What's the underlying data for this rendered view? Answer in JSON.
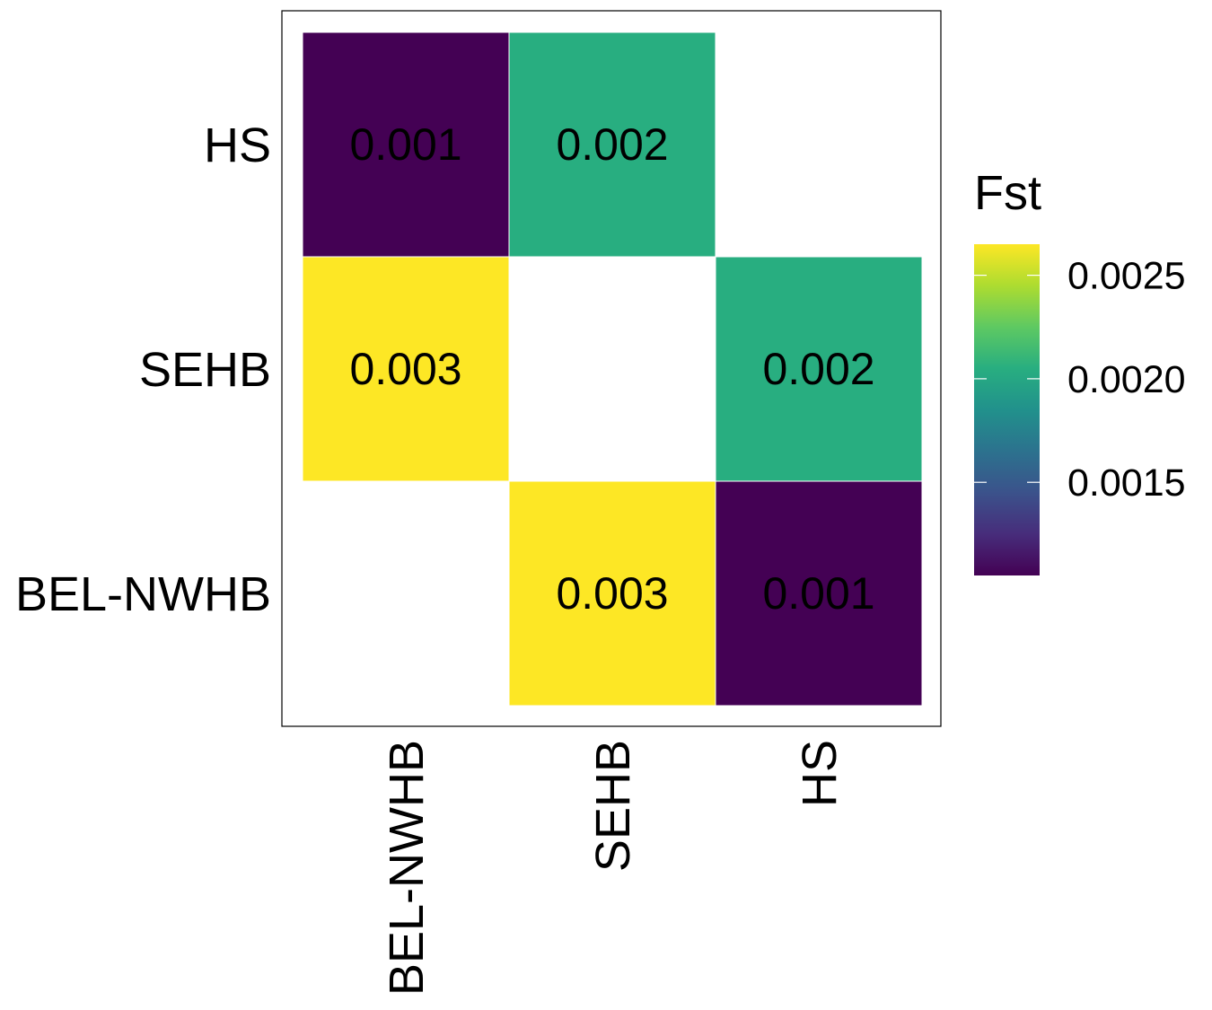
{
  "chart_data": {
    "type": "heatmap",
    "title": "",
    "xlabel": "",
    "ylabel": "",
    "x_categories": [
      "BEL-NWHB",
      "SEHB",
      "HS"
    ],
    "y_categories": [
      "BEL-NWHB",
      "SEHB",
      "HS"
    ],
    "cells": [
      {
        "x": "BEL-NWHB",
        "y": "HS",
        "value": 0.00105,
        "label": "0.001"
      },
      {
        "x": "SEHB",
        "y": "HS",
        "value": 0.00205,
        "label": "0.002"
      },
      {
        "x": "BEL-NWHB",
        "y": "SEHB",
        "value": 0.00265,
        "label": "0.003"
      },
      {
        "x": "HS",
        "y": "SEHB",
        "value": 0.00205,
        "label": "0.002"
      },
      {
        "x": "SEHB",
        "y": "BEL-NWHB",
        "value": 0.00265,
        "label": "0.003"
      },
      {
        "x": "HS",
        "y": "BEL-NWHB",
        "value": 0.00105,
        "label": "0.001"
      }
    ],
    "legend": {
      "title": "Fst",
      "position": "right",
      "colormap": "viridis",
      "range": [
        0.00105,
        0.00265
      ],
      "ticks": [
        0.0015,
        0.002,
        0.0025
      ],
      "tick_labels": [
        "0.0015",
        "0.0020",
        "0.0025"
      ]
    }
  }
}
